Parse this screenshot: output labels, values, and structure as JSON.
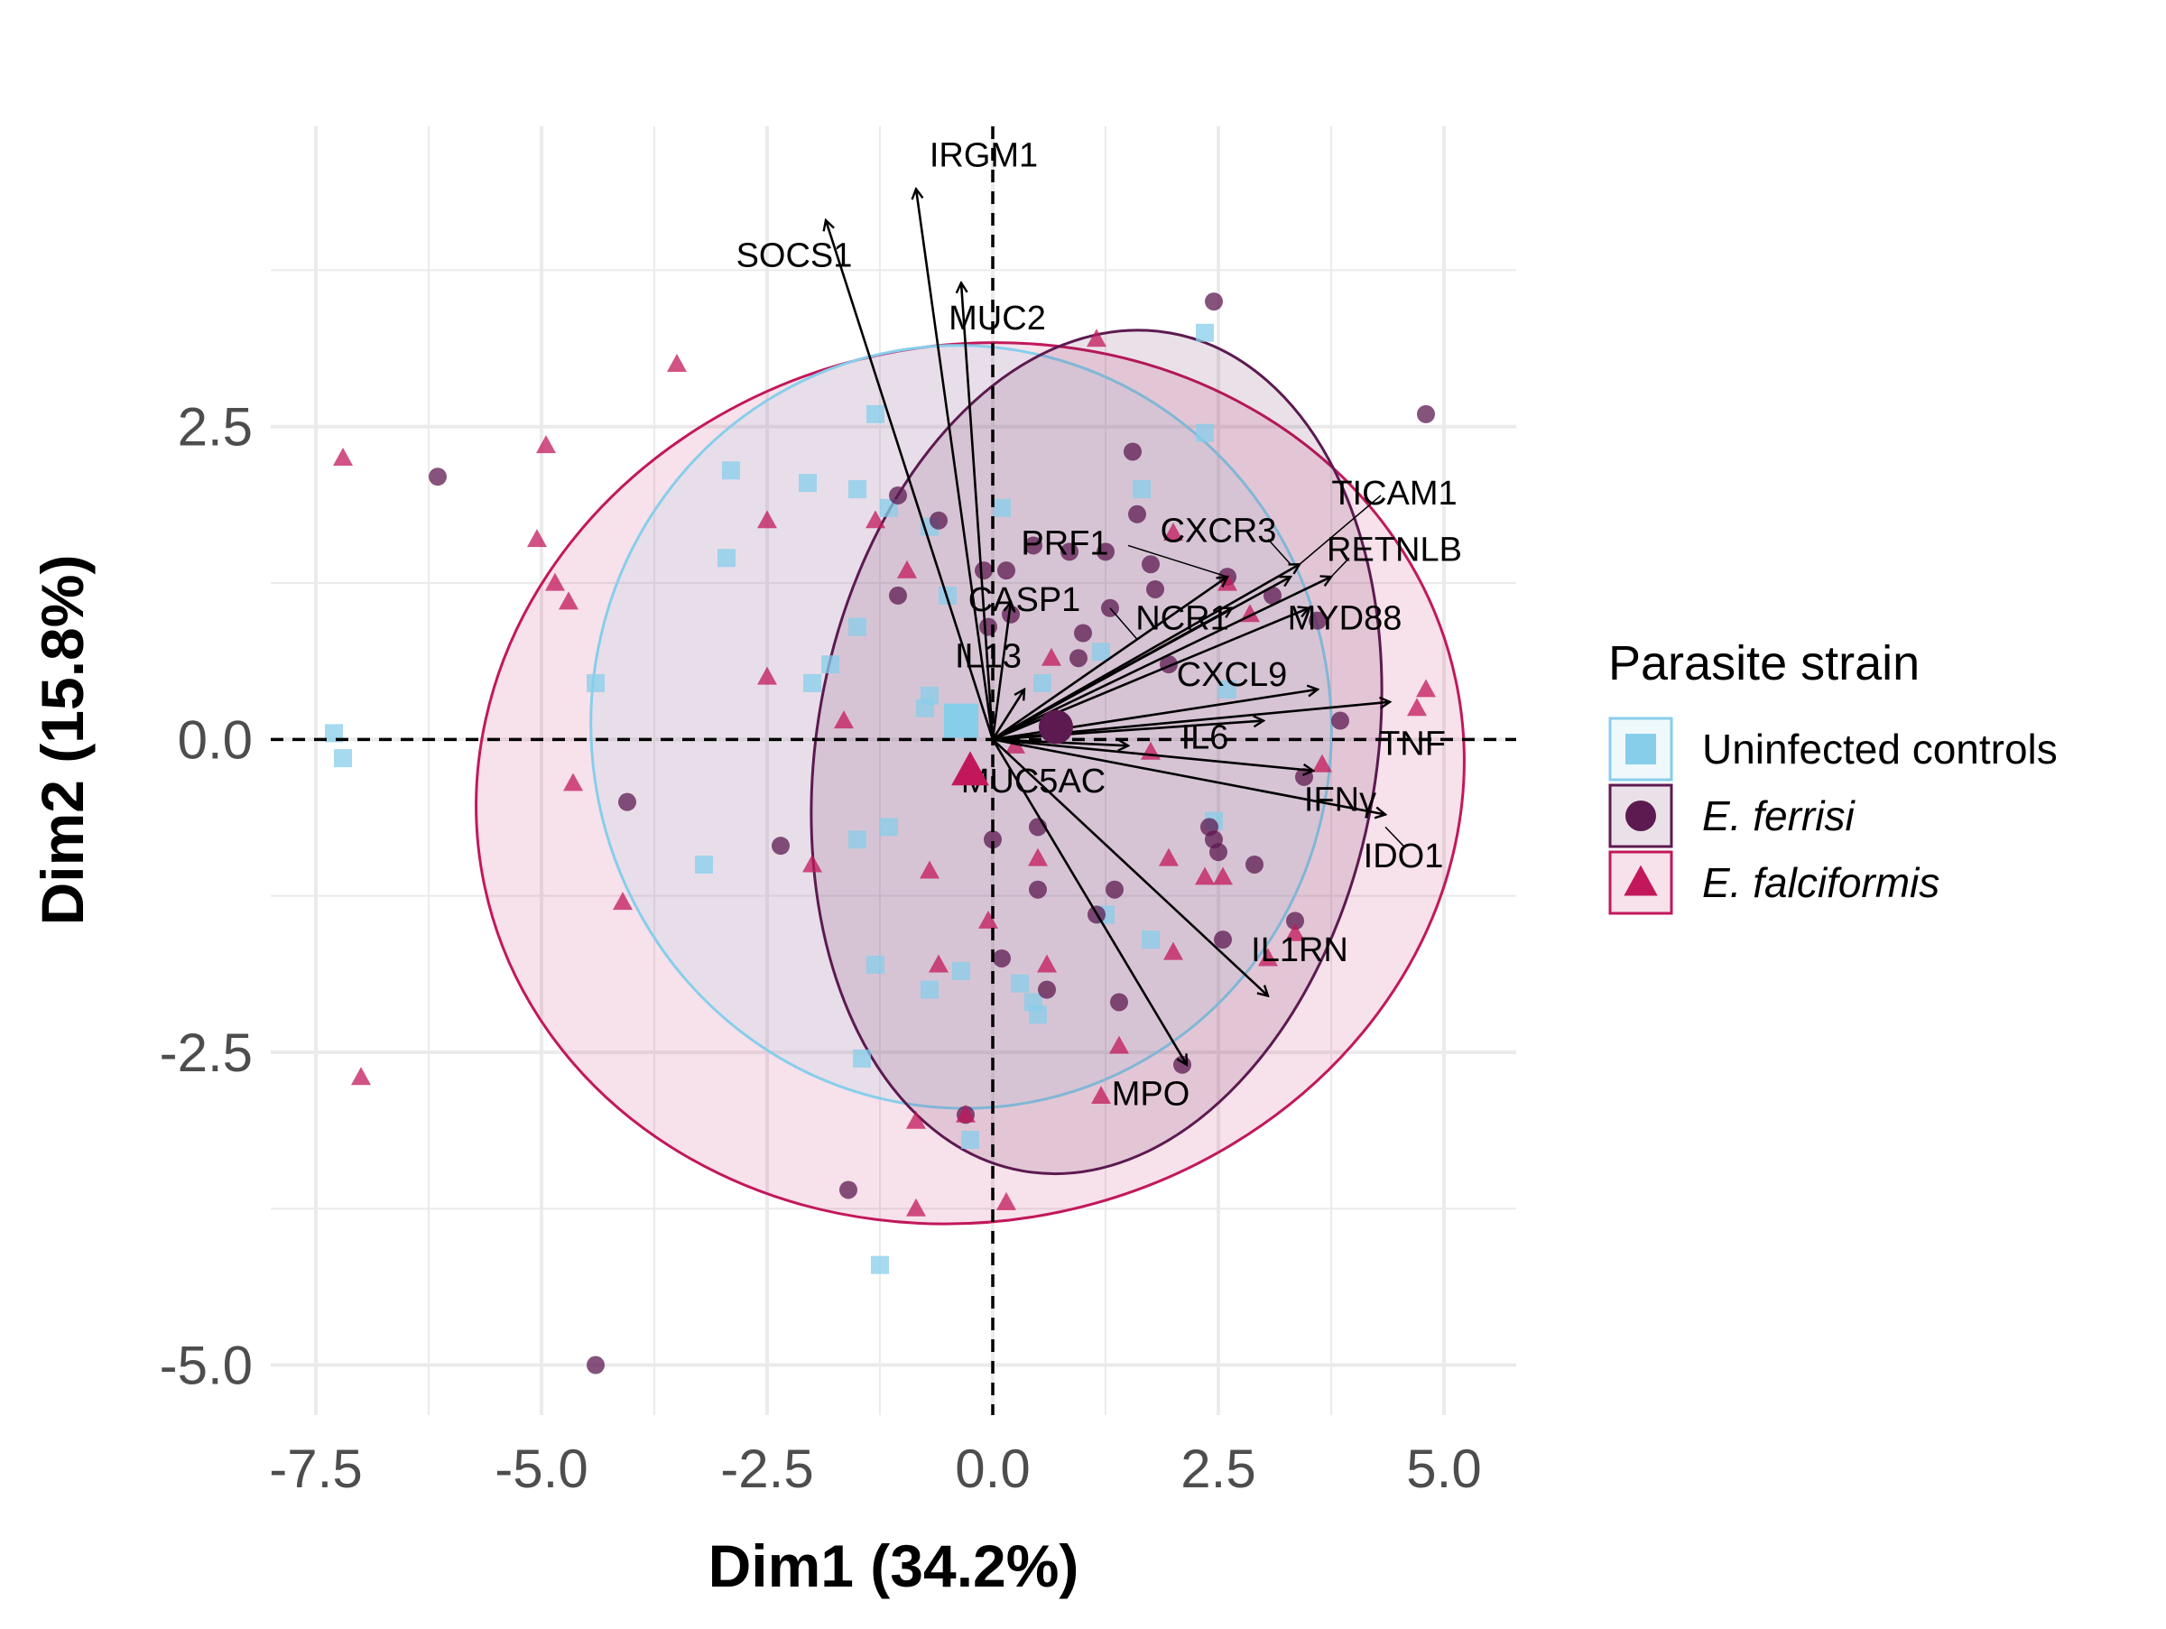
{
  "colors": {
    "uninfected": "#87CEEB",
    "ferrisi": "#5C1A50",
    "falciformis": "#C2185B",
    "grid": "#EBEBEB",
    "arrow": "#000000"
  },
  "chart_data": {
    "type": "scatter",
    "subtype": "pca-biplot",
    "xlabel": "Dim1 (34.2%)",
    "ylabel": "Dim2 (15.8%)",
    "xlim": [
      -8.0,
      5.8
    ],
    "ylim": [
      -5.4,
      4.9
    ],
    "x_ticks": [
      -7.5,
      -5.0,
      -2.5,
      0.0,
      2.5,
      5.0
    ],
    "x_tick_labels": [
      "-7.5",
      "-5.0",
      "-2.5",
      "0.0",
      "2.5",
      "5.0"
    ],
    "y_ticks": [
      -5.0,
      -2.5,
      0.0,
      2.5
    ],
    "y_tick_labels": [
      "-5.0",
      "-2.5",
      "0.0",
      "2.5"
    ],
    "grid": true,
    "reference_lines": {
      "x": 0,
      "y": 0,
      "style": "dashed"
    },
    "legend": {
      "title": "Parasite strain",
      "position": "right",
      "entries": [
        {
          "key": "uninfected",
          "label": "Uninfected controls",
          "shape": "square",
          "italic": false
        },
        {
          "key": "ferrisi",
          "label": "E. ferrisi",
          "shape": "circle",
          "italic": true
        },
        {
          "key": "falciformis",
          "label": "E. falciformis",
          "shape": "triangle",
          "italic": true
        }
      ]
    },
    "ellipses": [
      {
        "group": "falciformis",
        "cx": -0.25,
        "cy": -0.35,
        "rx": 5.5,
        "ry": 3.5,
        "angle_deg": -12
      },
      {
        "group": "uninfected",
        "cx": -0.35,
        "cy": 0.1,
        "rx": 4.1,
        "ry": 3.05,
        "angle_deg": -8
      },
      {
        "group": "ferrisi",
        "cx": 1.15,
        "cy": -0.1,
        "rx": 3.1,
        "ry": 3.4,
        "angle_deg": 10
      }
    ],
    "centroids": [
      {
        "group": "uninfected",
        "x": -0.35,
        "y": 0.15
      },
      {
        "group": "ferrisi",
        "x": 0.7,
        "y": 0.1
      },
      {
        "group": "falciformis",
        "x": -0.25,
        "y": -0.25
      }
    ],
    "series": [
      {
        "name": "Uninfected controls",
        "key": "uninfected",
        "points": [
          [
            -7.3,
            0.05
          ],
          [
            -7.2,
            -0.15
          ],
          [
            -4.4,
            0.45
          ],
          [
            -3.2,
            -1.0
          ],
          [
            -2.95,
            1.45
          ],
          [
            -2.9,
            2.15
          ],
          [
            -2.05,
            2.05
          ],
          [
            -2.0,
            0.45
          ],
          [
            -1.8,
            0.6
          ],
          [
            -1.5,
            0.9
          ],
          [
            -1.5,
            2.0
          ],
          [
            -1.3,
            2.6
          ],
          [
            -1.5,
            -0.8
          ],
          [
            -1.3,
            -1.8
          ],
          [
            -1.45,
            -2.55
          ],
          [
            -1.25,
            -4.2
          ],
          [
            -1.15,
            -0.7
          ],
          [
            -1.15,
            1.85
          ],
          [
            -0.7,
            1.7
          ],
          [
            -0.75,
            0.25
          ],
          [
            -0.7,
            0.35
          ],
          [
            -0.5,
            1.15
          ],
          [
            -0.7,
            -2.0
          ],
          [
            -0.35,
            -1.85
          ],
          [
            -0.25,
            -3.2
          ],
          [
            0.1,
            1.85
          ],
          [
            0.3,
            -1.95
          ],
          [
            0.45,
            -2.1
          ],
          [
            0.5,
            -2.2
          ],
          [
            0.55,
            0.45
          ],
          [
            1.2,
            0.7
          ],
          [
            1.25,
            -1.4
          ],
          [
            1.65,
            2.0
          ],
          [
            1.75,
            -1.6
          ],
          [
            2.35,
            2.45
          ],
          [
            2.35,
            3.25
          ],
          [
            2.45,
            -0.65
          ],
          [
            2.6,
            0.4
          ]
        ]
      },
      {
        "name": "E. ferrisi",
        "key": "ferrisi",
        "points": [
          [
            -6.15,
            2.1
          ],
          [
            -4.4,
            -5.0
          ],
          [
            -4.05,
            -0.5
          ],
          [
            -2.35,
            -0.85
          ],
          [
            -1.6,
            -3.6
          ],
          [
            -1.05,
            1.95
          ],
          [
            -1.05,
            1.15
          ],
          [
            -0.6,
            1.75
          ],
          [
            -0.3,
            -3.0
          ],
          [
            -0.1,
            1.35
          ],
          [
            -0.05,
            0.9
          ],
          [
            0.1,
            -1.75
          ],
          [
            0.15,
            1.35
          ],
          [
            0.2,
            1.0
          ],
          [
            0.45,
            1.55
          ],
          [
            0.5,
            -0.7
          ],
          [
            0.5,
            -1.2
          ],
          [
            0.6,
            -2.0
          ],
          [
            0.85,
            1.5
          ],
          [
            0.95,
            0.65
          ],
          [
            1.0,
            0.85
          ],
          [
            1.15,
            -1.4
          ],
          [
            1.25,
            1.5
          ],
          [
            1.3,
            1.05
          ],
          [
            1.35,
            -1.2
          ],
          [
            1.4,
            -2.1
          ],
          [
            1.55,
            2.3
          ],
          [
            1.6,
            1.8
          ],
          [
            1.75,
            1.4
          ],
          [
            1.8,
            1.2
          ],
          [
            1.95,
            0.6
          ],
          [
            2.4,
            -0.7
          ],
          [
            2.45,
            3.5
          ],
          [
            2.45,
            -0.8
          ],
          [
            2.5,
            -0.9
          ],
          [
            2.55,
            -1.6
          ],
          [
            2.6,
            1.3
          ],
          [
            2.9,
            -1.0
          ],
          [
            3.1,
            1.15
          ],
          [
            3.35,
            -1.45
          ],
          [
            3.45,
            -0.3
          ],
          [
            3.6,
            0.95
          ],
          [
            3.85,
            0.15
          ],
          [
            4.8,
            2.6
          ],
          [
            2.1,
            -2.6
          ],
          [
            0.0,
            -0.8
          ]
        ]
      },
      {
        "name": "E. falciformis",
        "key": "falciformis",
        "points": [
          [
            -7.2,
            2.25
          ],
          [
            -7.0,
            -2.7
          ],
          [
            -5.05,
            1.6
          ],
          [
            -4.95,
            2.35
          ],
          [
            -4.85,
            1.25
          ],
          [
            -4.7,
            1.1
          ],
          [
            -4.65,
            -0.35
          ],
          [
            -4.1,
            -1.3
          ],
          [
            -3.5,
            3.0
          ],
          [
            -2.5,
            1.75
          ],
          [
            -2.5,
            0.5
          ],
          [
            -2.0,
            -1.0
          ],
          [
            -1.65,
            0.15
          ],
          [
            -1.3,
            1.75
          ],
          [
            -0.95,
            1.35
          ],
          [
            -0.85,
            -3.05
          ],
          [
            -0.85,
            -3.75
          ],
          [
            -0.7,
            -1.05
          ],
          [
            -0.6,
            -1.8
          ],
          [
            -0.3,
            -3.0
          ],
          [
            -0.05,
            -1.45
          ],
          [
            0.15,
            -3.7
          ],
          [
            0.5,
            -0.95
          ],
          [
            0.6,
            -1.8
          ],
          [
            0.65,
            0.65
          ],
          [
            1.15,
            3.2
          ],
          [
            1.2,
            -2.85
          ],
          [
            1.4,
            -2.45
          ],
          [
            1.75,
            -0.1
          ],
          [
            1.95,
            -0.95
          ],
          [
            2.0,
            -1.7
          ],
          [
            2.0,
            1.65
          ],
          [
            2.35,
            -1.1
          ],
          [
            2.55,
            -1.1
          ],
          [
            2.6,
            1.25
          ],
          [
            2.85,
            1.0
          ],
          [
            3.05,
            -1.75
          ],
          [
            3.35,
            -1.55
          ],
          [
            3.65,
            -0.2
          ],
          [
            4.7,
            0.25
          ],
          [
            4.8,
            0.4
          ],
          [
            0.25,
            -0.05
          ]
        ]
      }
    ],
    "variables": [
      {
        "name": "IRGM1",
        "x": -0.85,
        "y": 4.4,
        "lx": -0.1,
        "ly": 4.65
      },
      {
        "name": "SOCS1",
        "x": -1.85,
        "y": 4.15,
        "lx": -2.2,
        "ly": 3.85
      },
      {
        "name": "MUC2",
        "x": -0.35,
        "y": 3.65,
        "lx": 0.05,
        "ly": 3.35
      },
      {
        "name": "TICAM1",
        "x": 3.4,
        "y": 1.4,
        "lx": 4.45,
        "ly": 1.95
      },
      {
        "name": "RETNLB",
        "x": 3.75,
        "y": 1.3,
        "lx": 4.45,
        "ly": 1.5
      },
      {
        "name": "CXCR3",
        "x": 3.3,
        "y": 1.3,
        "lx": 2.5,
        "ly": 1.65
      },
      {
        "name": "PRF1",
        "x": 2.6,
        "y": 1.3,
        "lx": 0.8,
        "ly": 1.55
      },
      {
        "name": "MYD88",
        "x": 3.5,
        "y": 1.05,
        "lx": 3.9,
        "ly": 0.95
      },
      {
        "name": "NCR1",
        "x": 2.65,
        "y": 1.05,
        "lx": 2.1,
        "ly": 0.95
      },
      {
        "name": "CASP1",
        "x": 0.2,
        "y": 1.1,
        "lx": 0.35,
        "ly": 1.1
      },
      {
        "name": "CXCL9",
        "x": 3.6,
        "y": 0.4,
        "lx": 2.65,
        "ly": 0.5
      },
      {
        "name": "IL13",
        "x": 0.35,
        "y": 0.4,
        "lx": -0.05,
        "ly": 0.65
      },
      {
        "name": "TNF",
        "x": 4.4,
        "y": 0.3,
        "lx": 4.65,
        "ly": -0.05
      },
      {
        "name": "IL6",
        "x": 3.0,
        "y": 0.15,
        "lx": 2.35,
        "ly": 0.0
      },
      {
        "name": "IFNγ",
        "x": 3.55,
        "y": -0.25,
        "lx": 3.85,
        "ly": -0.5
      },
      {
        "name": "IDO1",
        "x": 4.35,
        "y": -0.6,
        "lx": 4.55,
        "ly": -0.95
      },
      {
        "name": "MUC5AC",
        "x": 1.5,
        "y": -0.05,
        "lx": 0.45,
        "ly": -0.35
      },
      {
        "name": "IL1RN",
        "x": 3.05,
        "y": -2.05,
        "lx": 3.4,
        "ly": -1.7
      },
      {
        "name": "MPO",
        "x": 2.15,
        "y": -2.6,
        "lx": 1.75,
        "ly": -2.85
      }
    ],
    "variable_labels_display": {
      "IRGM1": "IRGM1",
      "SOCS1": "SOCS1",
      "MUC2": "MUC2",
      "TICAM1": "TICAM1",
      "RETNLB": "RETNLB",
      "CXCR3": "CXCR3",
      "PRF1": "PRF1",
      "MYD88": "MYD88",
      "NCR1": "NCR1",
      "CASP1": "CASP1",
      "CXCL9": "CXCL9",
      "IL13": "IL13",
      "TNF": "TNF",
      "IL6": "IL6",
      "IFNγ": "IFNγ",
      "IDO1": "IDO1",
      "MUC5AC": "MUC5AC",
      "IL1RN": "IL1RN",
      "MPO": "MPO"
    }
  }
}
